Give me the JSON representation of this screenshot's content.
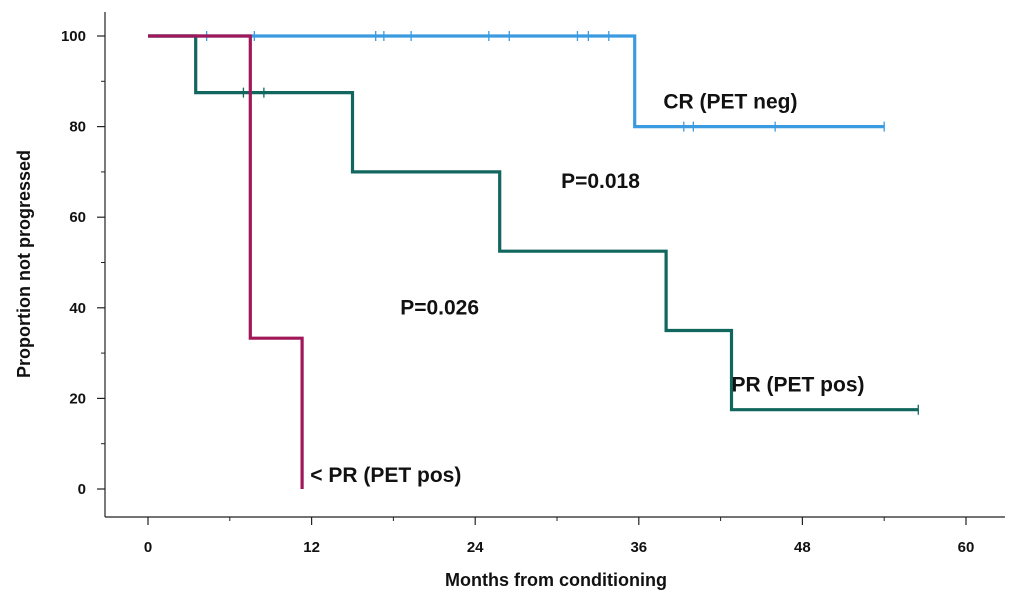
{
  "chart_data": {
    "type": "line",
    "subtype": "kaplan-meier",
    "xlabel": "Months from conditioning",
    "ylabel": "Proportion not progressed",
    "xlim": [
      0,
      60
    ],
    "ylim": [
      0,
      100
    ],
    "x_ticks": [
      0,
      12,
      24,
      36,
      48,
      60
    ],
    "y_ticks": [
      0,
      20,
      40,
      60,
      80,
      100
    ],
    "grid": false,
    "series": [
      {
        "name": "CR (PET neg)",
        "color": "#3a9be0",
        "steps": [
          [
            0,
            100
          ],
          [
            35.7,
            100
          ],
          [
            35.7,
            80
          ],
          [
            54,
            80
          ]
        ],
        "censored": [
          [
            4.3,
            100
          ],
          [
            7.8,
            100
          ],
          [
            16.7,
            100
          ],
          [
            17.3,
            100
          ],
          [
            19.3,
            100
          ],
          [
            25,
            100
          ],
          [
            26.5,
            100
          ],
          [
            31.5,
            100
          ],
          [
            32.3,
            100
          ],
          [
            33.8,
            100
          ],
          [
            39.3,
            80
          ],
          [
            40,
            80
          ],
          [
            46,
            80
          ],
          [
            54,
            80
          ]
        ]
      },
      {
        "name": "PR (PET pos)",
        "color": "#11665e",
        "steps": [
          [
            0,
            100
          ],
          [
            3.5,
            100
          ],
          [
            3.5,
            87.5
          ],
          [
            15,
            87.5
          ],
          [
            15,
            70
          ],
          [
            25.8,
            70
          ],
          [
            25.8,
            52.5
          ],
          [
            38,
            52.5
          ],
          [
            38,
            35
          ],
          [
            42.8,
            35
          ],
          [
            42.8,
            17.5
          ],
          [
            56.5,
            17.5
          ]
        ],
        "censored": [
          [
            7,
            87.5
          ],
          [
            8.5,
            87.5
          ],
          [
            56.5,
            17.5
          ]
        ]
      },
      {
        "name": "< PR (PET pos)",
        "color": "#a0175a",
        "steps": [
          [
            0,
            100
          ],
          [
            7.5,
            100
          ],
          [
            7.5,
            33.3
          ],
          [
            11.3,
            33.3
          ],
          [
            11.3,
            0
          ]
        ],
        "censored": []
      }
    ],
    "annotations": [
      {
        "text": "CR (PET neg)",
        "x": 37.8,
        "y": 84
      },
      {
        "text": "P=0.018",
        "x": 30.3,
        "y": 66.5
      },
      {
        "text": "P=0.026",
        "x": 18.5,
        "y": 38.5
      },
      {
        "text": "PR (PET pos)",
        "x": 42.8,
        "y": 21.5
      },
      {
        "text": "< PR (PET pos)",
        "x": 11.9,
        "y": 1.5
      }
    ]
  }
}
